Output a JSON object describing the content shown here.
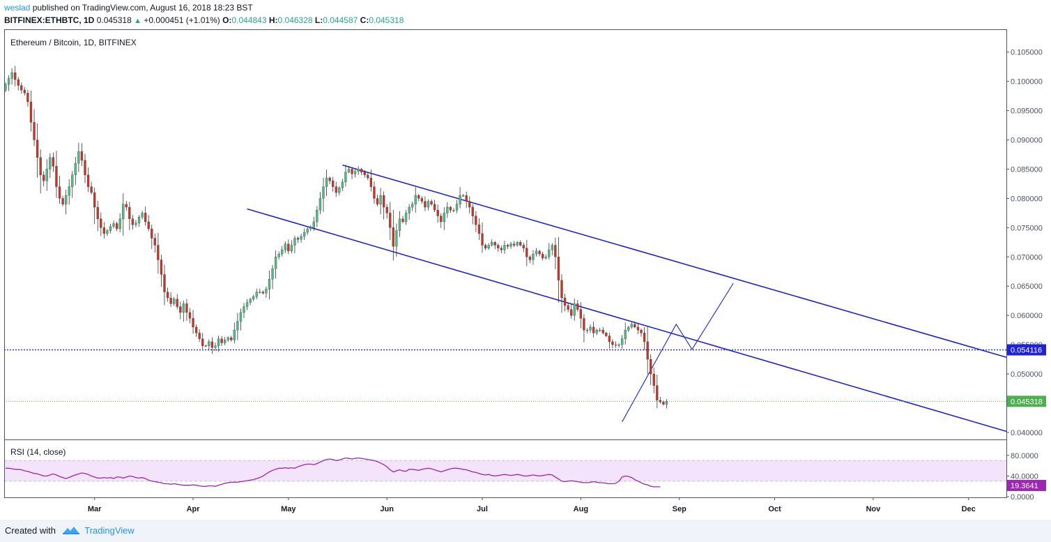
{
  "header": {
    "author": "weslad",
    "published_text": "published on TradingView.com, August 16, 2018 18:23 BST",
    "symbol": "BITFINEX:ETHBTC, 1D",
    "last": "0.045318",
    "change": "+0.000451 (+1.01%)",
    "open_label": "O:",
    "open": "0.044843",
    "high_label": "H:",
    "high": "0.046328",
    "low_label": "L:",
    "low": "0.044587",
    "close_label": "C:",
    "close": "0.045318"
  },
  "footer": {
    "created_with": "Created with",
    "brand": "TradingView"
  },
  "colors": {
    "up": "#26a69a",
    "up_candle": "#53b987",
    "down_candle": "#c0392b",
    "trendline": "#1e22d8",
    "rsi_line": "#9c27b0",
    "rsi_band": "#f3e3fb",
    "close_line": "#4caf50",
    "level_line": "#1e22d8"
  },
  "chart_data": {
    "type": "candlestick",
    "title": "Ethereum / Bitcoin, 1D, BITFINEX",
    "y_ticks": [
      "0.105000",
      "0.100000",
      "0.095000",
      "0.090000",
      "0.085000",
      "0.080000",
      "0.075000",
      "0.070000",
      "0.065000",
      "0.060000",
      "0.055000",
      "0.050000",
      "0.045000",
      "0.040000"
    ],
    "ylim": [
      0.0388,
      0.1089
    ],
    "x_labels": [
      "Mar",
      "Apr",
      "May",
      "Jun",
      "Jul",
      "Aug",
      "Sep",
      "Oct",
      "Nov",
      "Dec"
    ],
    "x_label_dates": [
      "2018-03-01",
      "2018-04-01",
      "2018-05-01",
      "2018-06-01",
      "2018-07-01",
      "2018-08-01",
      "2018-09-01",
      "2018-10-01",
      "2018-11-01",
      "2018-12-01"
    ],
    "candles": {
      "start_date": "2018-02-01",
      "close": [
        0.0995,
        0.1005,
        0.1015,
        0.1003,
        0.0993,
        0.0985,
        0.098,
        0.0965,
        0.093,
        0.09,
        0.087,
        0.084,
        0.083,
        0.085,
        0.087,
        0.0855,
        0.082,
        0.08,
        0.079,
        0.0805,
        0.082,
        0.084,
        0.086,
        0.088,
        0.0865,
        0.084,
        0.082,
        0.081,
        0.0785,
        0.0765,
        0.075,
        0.074,
        0.0745,
        0.0752,
        0.0757,
        0.0748,
        0.0765,
        0.079,
        0.0785,
        0.0765,
        0.0755,
        0.0758,
        0.0768,
        0.0775,
        0.076,
        0.0748,
        0.0732,
        0.072,
        0.0695,
        0.067,
        0.064,
        0.063,
        0.062,
        0.0628,
        0.0615,
        0.0605,
        0.062,
        0.0605,
        0.0595,
        0.058,
        0.057,
        0.056,
        0.0548,
        0.0548,
        0.0555,
        0.0545,
        0.0548,
        0.056,
        0.0553,
        0.0558,
        0.0562,
        0.0558,
        0.0575,
        0.059,
        0.0605,
        0.0615,
        0.0622,
        0.0628,
        0.0632,
        0.064,
        0.064,
        0.0638,
        0.0645,
        0.0662,
        0.068,
        0.07,
        0.0705,
        0.0712,
        0.0722,
        0.071,
        0.072,
        0.0732,
        0.073,
        0.0735,
        0.0742,
        0.0748,
        0.075,
        0.076,
        0.078,
        0.08,
        0.082,
        0.0835,
        0.083,
        0.082,
        0.081,
        0.0818,
        0.0828,
        0.0845,
        0.085,
        0.0842,
        0.0846,
        0.085,
        0.0845,
        0.084,
        0.0835,
        0.082,
        0.08,
        0.079,
        0.0805,
        0.0785,
        0.0775,
        0.075,
        0.0718,
        0.0745,
        0.0765,
        0.076,
        0.0775,
        0.0785,
        0.079,
        0.0805,
        0.08,
        0.0795,
        0.0785,
        0.0795,
        0.079,
        0.078,
        0.077,
        0.076,
        0.0775,
        0.0785,
        0.078,
        0.078,
        0.079,
        0.0805,
        0.0805,
        0.0795,
        0.0785,
        0.077,
        0.0755,
        0.074,
        0.072,
        0.0715,
        0.072,
        0.0725,
        0.072,
        0.0715,
        0.0712,
        0.072,
        0.0718,
        0.0722,
        0.072,
        0.0725,
        0.072,
        0.0715,
        0.07,
        0.0695,
        0.0705,
        0.071,
        0.0705,
        0.0698,
        0.07,
        0.0712,
        0.072,
        0.07,
        0.066,
        0.063,
        0.0617,
        0.061,
        0.06,
        0.062,
        0.061,
        0.0595,
        0.0575,
        0.0575,
        0.058,
        0.057,
        0.0575,
        0.0575,
        0.057,
        0.0565,
        0.0555,
        0.055,
        0.055,
        0.055,
        0.056,
        0.0575,
        0.058,
        0.0585,
        0.058,
        0.0575,
        0.057,
        0.0555,
        0.0525,
        0.05,
        0.048,
        0.0455,
        0.0452,
        0.0448,
        0.0453
      ]
    },
    "trendlines": [
      {
        "name": "upper channel",
        "x1": "2018-05-18",
        "y1": 0.0857,
        "x2": "2018-12-31",
        "y2": 0.05
      },
      {
        "name": "lower channel",
        "x1": "2018-04-18",
        "y1": 0.0782,
        "x2": "2018-12-31",
        "y2": 0.0373
      }
    ],
    "projection": [
      {
        "date": "2018-08-14",
        "value": 0.0418
      },
      {
        "date": "2018-08-31",
        "value": 0.0585
      },
      {
        "date": "2018-09-05",
        "value": 0.0542
      },
      {
        "date": "2018-09-18",
        "value": 0.0655
      }
    ],
    "horizontal_level": {
      "value": 0.054116,
      "label": "0.054116"
    },
    "last_price": {
      "value": 0.045318,
      "label": "0.045318"
    },
    "rsi": {
      "title": "RSI (14, close)",
      "upper_band": 70,
      "lower_band": 30,
      "ylim": [
        0,
        100
      ],
      "y_ticks": [
        "80.0000",
        "40.0000",
        "0.0000"
      ],
      "last_label": "19.3641",
      "values": [
        55,
        55,
        54,
        53,
        53,
        52,
        50,
        49,
        47,
        45,
        44,
        42,
        40,
        40,
        42,
        44,
        42,
        39,
        37,
        35,
        37,
        40,
        42,
        44,
        46,
        45,
        43,
        40,
        38,
        36,
        36,
        37,
        36,
        37,
        35,
        38,
        38,
        36,
        38,
        40,
        39,
        37,
        36,
        37,
        35,
        32,
        30,
        29,
        28,
        27,
        25,
        25,
        24,
        25,
        24,
        23,
        22,
        22,
        22,
        23,
        22,
        21,
        20,
        20,
        21,
        21,
        20,
        22,
        24,
        26,
        27,
        28,
        28,
        28,
        29,
        30,
        31,
        32,
        33,
        35,
        37,
        40,
        44,
        48,
        51,
        53,
        55,
        55,
        56,
        55,
        56,
        55,
        58,
        60,
        62,
        63,
        63,
        62,
        64,
        67,
        70,
        72,
        73,
        72,
        70,
        71,
        73,
        75,
        74,
        73,
        74,
        75,
        74,
        73,
        72,
        71,
        70,
        68,
        65,
        62,
        58,
        52,
        48,
        50,
        52,
        50,
        49,
        53,
        53,
        52,
        51,
        53,
        54,
        55,
        54,
        52,
        50,
        48,
        50,
        52,
        54,
        55,
        55,
        54,
        53,
        52,
        50,
        48,
        47,
        45,
        43,
        42,
        43,
        41,
        40,
        41,
        42,
        43,
        42,
        41,
        42,
        43,
        42,
        40,
        40,
        41,
        42,
        41,
        40,
        41,
        42,
        43,
        42,
        38,
        34,
        30,
        29,
        30,
        31,
        30,
        29,
        28,
        27,
        27,
        28,
        29,
        28,
        27,
        27,
        26,
        25,
        25,
        26,
        30,
        38,
        40,
        39,
        37,
        33,
        30,
        27,
        24,
        23,
        20,
        19,
        19,
        19
      ]
    }
  }
}
